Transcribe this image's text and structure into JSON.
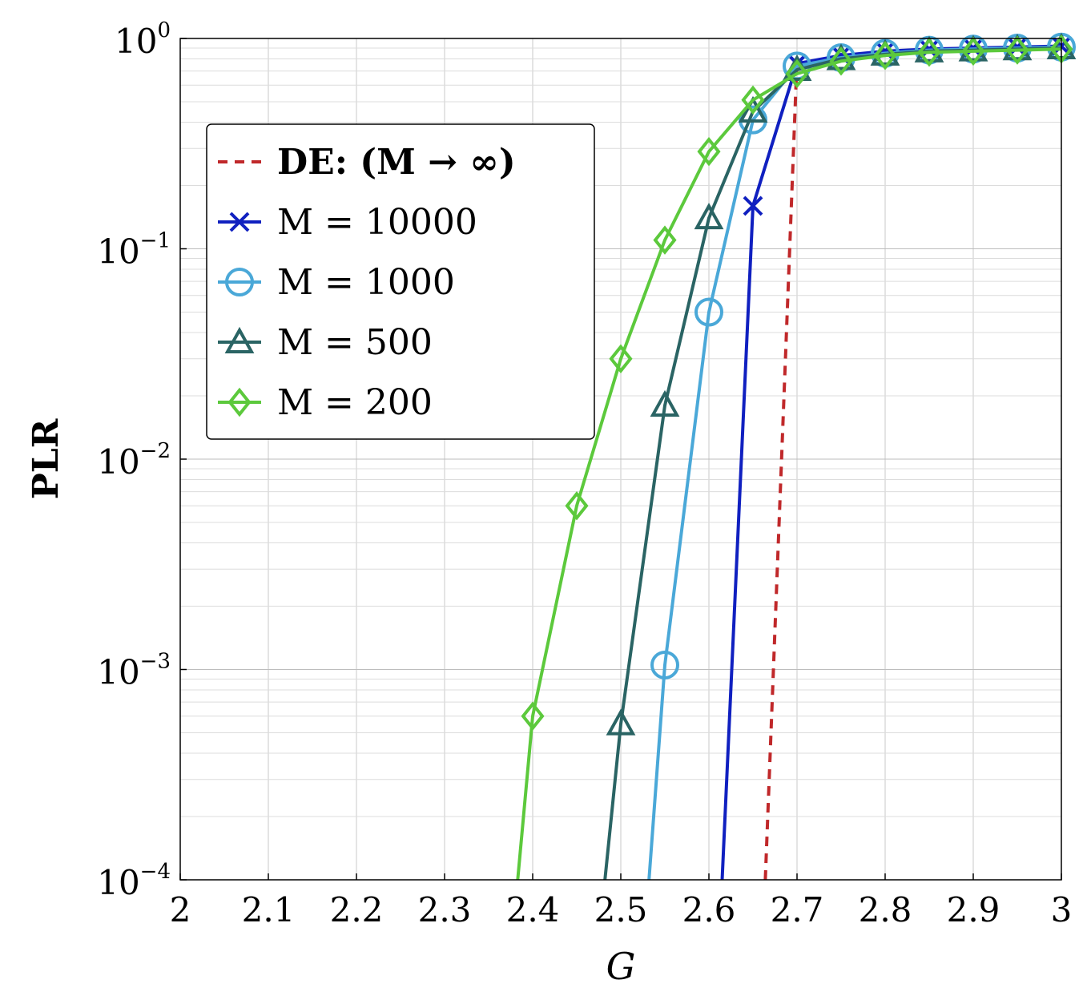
{
  "chart_data": {
    "type": "line",
    "xlabel": "G",
    "ylabel": "PLR",
    "xlim": [
      2,
      3
    ],
    "ylim": [
      0.0001,
      1
    ],
    "yscale": "log",
    "grid": true,
    "legend_position": "top-left",
    "x_ticks": [
      "2",
      "2.1",
      "2.2",
      "2.3",
      "2.4",
      "2.5",
      "2.6",
      "2.7",
      "2.8",
      "2.9",
      "3"
    ],
    "y_ticks": [
      {
        "base": "10",
        "exp": "0"
      },
      {
        "base": "10",
        "exp": "−1"
      },
      {
        "base": "10",
        "exp": "−2"
      },
      {
        "base": "10",
        "exp": "−3"
      },
      {
        "base": "10",
        "exp": "−4"
      }
    ],
    "series": [
      {
        "name": "DE: (M → ∞)",
        "color": "#c0282a",
        "style": "dashed",
        "marker": "none",
        "x": [
          2.664,
          2.7
        ],
        "y": [
          0.0001,
          0.8
        ]
      },
      {
        "name": "M = 10000",
        "color": "#1020c0",
        "style": "solid",
        "marker": "x",
        "x": [
          2.615,
          2.65,
          2.7,
          2.75,
          2.8,
          2.85,
          2.9,
          2.95,
          3.0
        ],
        "y": [
          0.0001,
          0.16,
          0.76,
          0.83,
          0.87,
          0.89,
          0.9,
          0.91,
          0.92
        ],
        "marked": [
          false,
          true,
          true,
          true,
          true,
          true,
          true,
          true,
          true
        ]
      },
      {
        "name": "M = 1000",
        "color": "#4aa8d8",
        "style": "solid",
        "marker": "circle",
        "x": [
          2.532,
          2.55,
          2.6,
          2.65,
          2.7,
          2.75,
          2.8,
          2.85,
          2.9,
          2.95,
          3.0
        ],
        "y": [
          0.0001,
          0.00105,
          0.05,
          0.41,
          0.74,
          0.81,
          0.85,
          0.88,
          0.89,
          0.9,
          0.91
        ],
        "marked": [
          false,
          true,
          true,
          true,
          true,
          true,
          true,
          true,
          true,
          true,
          true
        ]
      },
      {
        "name": "M = 500",
        "color": "#2a6464",
        "style": "solid",
        "marker": "triangle",
        "x": [
          2.482,
          2.5,
          2.55,
          2.6,
          2.65,
          2.7,
          2.75,
          2.8,
          2.85,
          2.9,
          2.95,
          3.0
        ],
        "y": [
          0.0001,
          0.00055,
          0.018,
          0.14,
          0.45,
          0.71,
          0.8,
          0.84,
          0.87,
          0.88,
          0.89,
          0.9
        ],
        "marked": [
          false,
          true,
          true,
          true,
          true,
          true,
          true,
          true,
          true,
          true,
          true,
          true
        ]
      },
      {
        "name": "M = 200",
        "color": "#5cc93c",
        "style": "solid",
        "marker": "diamond",
        "x": [
          2.383,
          2.4,
          2.45,
          2.5,
          2.55,
          2.6,
          2.65,
          2.7,
          2.75,
          2.8,
          2.85,
          2.9,
          2.95,
          3.0
        ],
        "y": [
          0.0001,
          0.0006,
          0.006,
          0.03,
          0.11,
          0.29,
          0.51,
          0.68,
          0.78,
          0.83,
          0.86,
          0.87,
          0.88,
          0.89
        ],
        "marked": [
          false,
          true,
          true,
          true,
          true,
          true,
          true,
          true,
          true,
          true,
          true,
          true,
          true,
          true
        ]
      }
    ]
  }
}
